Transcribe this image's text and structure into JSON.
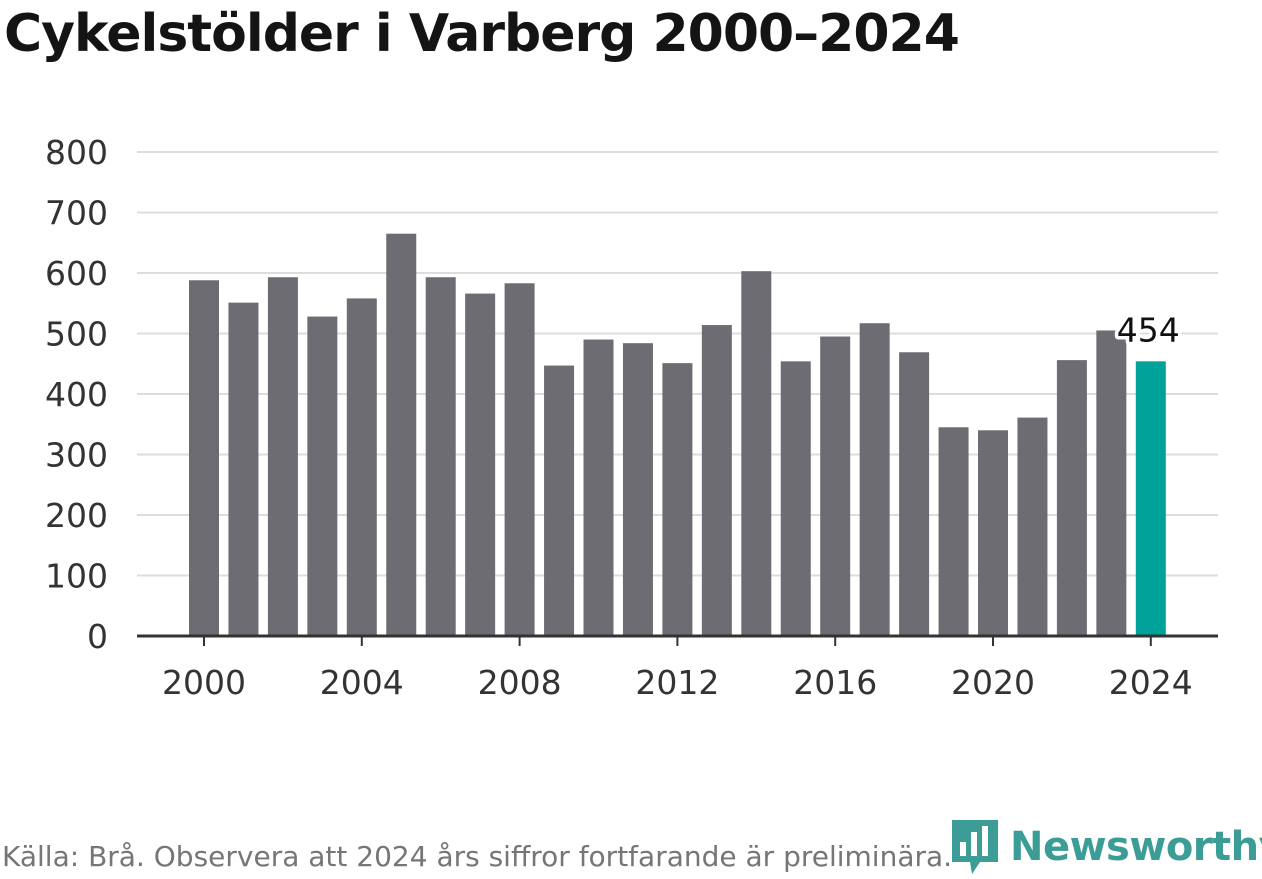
{
  "title": "Cykelstölder i Varberg 2000–2024",
  "source": "Källa: Brå. Observera att 2024 års siffror fortfarande är preliminära.",
  "brand": {
    "name": "Newsworthy",
    "color": "#3c9c96",
    "icon": "bar-chart-logo-icon"
  },
  "colors": {
    "bar": "#6d6c72",
    "highlight": "#00a29a",
    "grid": "#dddddd",
    "axis": "#333333"
  },
  "chart_data": {
    "type": "bar",
    "title": "Cykelstölder i Varberg 2000–2024",
    "xlabel": "",
    "ylabel": "",
    "ylim": [
      0,
      800
    ],
    "yticks": [
      0,
      100,
      200,
      300,
      400,
      500,
      600,
      700,
      800
    ],
    "xticks": [
      "2000",
      "2004",
      "2008",
      "2012",
      "2016",
      "2020",
      "2024"
    ],
    "categories": [
      "2000",
      "2001",
      "2002",
      "2003",
      "2004",
      "2005",
      "2006",
      "2007",
      "2008",
      "2009",
      "2010",
      "2011",
      "2012",
      "2013",
      "2014",
      "2015",
      "2016",
      "2017",
      "2018",
      "2019",
      "2020",
      "2021",
      "2022",
      "2023",
      "2024"
    ],
    "values": [
      588,
      551,
      593,
      528,
      558,
      665,
      593,
      566,
      583,
      447,
      490,
      484,
      451,
      514,
      603,
      454,
      495,
      517,
      469,
      345,
      340,
      361,
      456,
      505,
      454
    ],
    "highlight": {
      "category": "2024",
      "label": "454"
    },
    "grid": true
  }
}
